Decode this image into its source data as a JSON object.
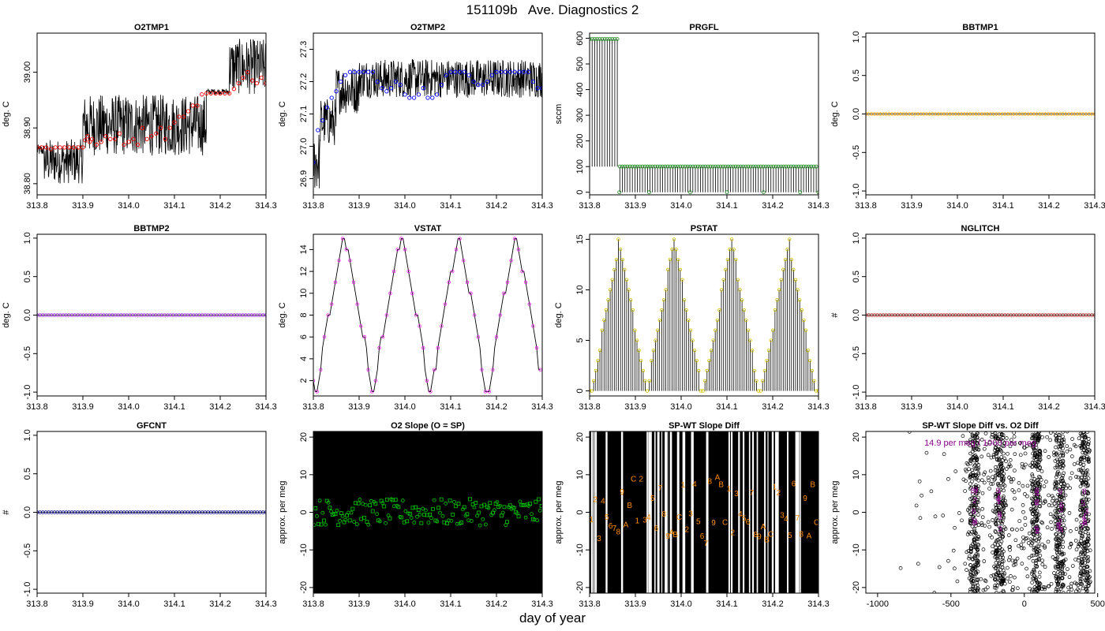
{
  "page": {
    "title": "151109b   Ave. Diagnostics 2",
    "xlabel": "day of year"
  },
  "colors": {
    "black": "#000000",
    "red": "#ff0000",
    "blue": "#0000ff",
    "green": "#00cc00",
    "darkgreen": "#1a8a1a",
    "orange": "#ffa500",
    "purple": "#a020f0",
    "magenta": "#ff00ff",
    "yellow": "#ffff00",
    "darkred": "#b22222",
    "navy": "#00008b",
    "darkorange": "#ff8c00",
    "darkmagenta": "#8b008b"
  },
  "chart_data": [
    {
      "id": "o2tmp1",
      "type": "scatter",
      "title": "O2TMP1",
      "xlabel": "",
      "ylabel": "deg. C",
      "xlim": [
        313.8,
        314.3
      ],
      "ylim": [
        38.78,
        39.07
      ],
      "xticks": [
        "313.8",
        "313.9",
        "314.0",
        "314.1",
        "314.2",
        "314.3"
      ],
      "yticks": [
        "38.80",
        "38.90",
        "39.00"
      ],
      "raw_line": {
        "segments": [
          [
            313.8,
            313.815,
            38.85,
            38.87
          ],
          [
            313.815,
            313.9,
            38.8,
            38.88
          ],
          [
            313.9,
            314.17,
            38.85,
            38.96
          ],
          [
            314.17,
            314.22,
            38.96,
            38.97
          ],
          [
            314.22,
            314.3,
            38.96,
            39.06
          ]
        ],
        "color": "black"
      },
      "series": [
        {
          "marker": "circle",
          "color": "red",
          "x": [
            313.8,
            313.81,
            313.82,
            313.83,
            313.84,
            313.85,
            313.86,
            313.87,
            313.88,
            313.89,
            313.9,
            313.905,
            313.91,
            313.915,
            313.92,
            313.93,
            313.94,
            313.95,
            313.96,
            313.97,
            313.98,
            313.99,
            314.0,
            314.01,
            314.02,
            314.03,
            314.04,
            314.05,
            314.06,
            314.07,
            314.08,
            314.09,
            314.1,
            314.11,
            314.12,
            314.13,
            314.14,
            314.15,
            314.16,
            314.17,
            314.18,
            314.19,
            314.2,
            314.21,
            314.22,
            314.23,
            314.24,
            314.25,
            314.26,
            314.27,
            314.28,
            314.29,
            314.3
          ],
          "y": [
            38.865,
            38.865,
            38.865,
            38.862,
            38.865,
            38.865,
            38.865,
            38.865,
            38.865,
            38.865,
            38.865,
            38.878,
            38.885,
            38.875,
            38.88,
            38.87,
            38.875,
            38.885,
            38.88,
            38.88,
            38.89,
            38.87,
            38.875,
            38.88,
            38.87,
            38.9,
            38.88,
            38.885,
            38.89,
            38.9,
            38.88,
            38.9,
            38.91,
            38.92,
            38.92,
            38.93,
            38.94,
            38.94,
            38.96,
            38.962,
            38.962,
            38.962,
            38.962,
            38.962,
            38.962,
            38.97,
            38.98,
            38.99,
            39.0,
            38.985,
            38.98,
            38.99,
            38.98
          ]
        }
      ]
    },
    {
      "id": "o2tmp2",
      "type": "scatter",
      "title": "O2TMP2",
      "xlabel": "",
      "ylabel": "deg. C",
      "xlim": [
        313.8,
        314.3
      ],
      "ylim": [
        26.85,
        27.35
      ],
      "xticks": [
        "313.8",
        "313.9",
        "314.0",
        "314.1",
        "314.2",
        "314.3"
      ],
      "yticks": [
        "26.9",
        "27.0",
        "27.1",
        "27.2",
        "27.3"
      ],
      "raw_line": {
        "segments": [
          [
            313.8,
            313.815,
            26.86,
            27.05
          ],
          [
            313.815,
            313.85,
            27.0,
            27.15
          ],
          [
            313.85,
            313.9,
            27.1,
            27.25
          ],
          [
            313.9,
            314.3,
            27.15,
            27.27
          ]
        ],
        "color": "black"
      },
      "series": [
        {
          "marker": "circle",
          "color": "blue",
          "x": [
            313.8,
            313.81,
            313.82,
            313.83,
            313.84,
            313.85,
            313.86,
            313.87,
            313.88,
            313.89,
            313.9,
            313.91,
            313.92,
            313.93,
            313.94,
            313.95,
            313.96,
            313.97,
            313.98,
            313.99,
            314.0,
            314.01,
            314.02,
            314.03,
            314.04,
            314.05,
            314.06,
            314.07,
            314.08,
            314.09,
            314.1,
            314.11,
            314.12,
            314.13,
            314.14,
            314.15,
            314.16,
            314.17,
            314.18,
            314.19,
            314.2,
            314.21,
            314.22,
            314.23,
            314.24,
            314.25,
            314.26,
            314.27,
            314.28,
            314.29,
            314.3
          ],
          "y": [
            26.95,
            27.05,
            27.08,
            27.12,
            27.15,
            27.17,
            27.2,
            27.22,
            27.23,
            27.23,
            27.23,
            27.23,
            27.23,
            27.23,
            27.2,
            27.18,
            27.17,
            27.18,
            27.2,
            27.19,
            27.16,
            27.15,
            27.15,
            27.16,
            27.18,
            27.15,
            27.15,
            27.16,
            27.19,
            27.22,
            27.23,
            27.23,
            27.23,
            27.23,
            27.22,
            27.2,
            27.19,
            27.19,
            27.2,
            27.22,
            27.23,
            27.23,
            27.23,
            27.23,
            27.23,
            27.23,
            27.23,
            27.23,
            27.2,
            27.18,
            27.18
          ]
        }
      ]
    },
    {
      "id": "prgfl",
      "type": "line",
      "title": "PRGFL",
      "xlabel": "",
      "ylabel": "sccm",
      "xlim": [
        313.8,
        314.3
      ],
      "ylim": [
        -10,
        620
      ],
      "xticks": [
        "313.8",
        "313.9",
        "314.0",
        "314.1",
        "314.2",
        "314.3"
      ],
      "yticks": [
        "0",
        "100",
        "200",
        "300",
        "400",
        "500",
        "600"
      ],
      "spikes": {
        "x_start": 313.8,
        "x_split": 313.865,
        "x_end": 314.3,
        "step": 0.0055,
        "high1": 597,
        "low1": 100,
        "high2": 100,
        "low2": 0,
        "color": "black"
      },
      "series": [
        {
          "marker": "circle",
          "color": "darkgreen",
          "levels": [
            597,
            100,
            0
          ]
        }
      ]
    },
    {
      "id": "bbtmp1",
      "type": "scatter",
      "title": "BBTMP1",
      "xlabel": "",
      "ylabel": "deg. C",
      "xlim": [
        313.8,
        314.3
      ],
      "ylim": [
        -1.05,
        1.05
      ],
      "xticks": [
        "313.8",
        "313.9",
        "314.0",
        "314.1",
        "314.2",
        "314.3"
      ],
      "yticks": [
        "-1.0",
        "-0.5",
        "0.0",
        "0.5",
        "1.0"
      ],
      "series": [
        {
          "marker": "circle",
          "color": "orange",
          "constant": 0.0,
          "count": 80
        }
      ]
    },
    {
      "id": "bbtmp2",
      "type": "scatter",
      "title": "BBTMP2",
      "xlabel": "",
      "ylabel": "deg. C",
      "xlim": [
        313.8,
        314.3
      ],
      "ylim": [
        -1.05,
        1.05
      ],
      "xticks": [
        "313.8",
        "313.9",
        "314.0",
        "314.1",
        "314.2",
        "314.3"
      ],
      "yticks": [
        "-1.0",
        "-0.5",
        "0.0",
        "0.5",
        "1.0"
      ],
      "series": [
        {
          "marker": "circle",
          "color": "purple",
          "constant": 0.0,
          "count": 80
        }
      ]
    },
    {
      "id": "vstat",
      "type": "line",
      "title": "VSTAT",
      "xlabel": "",
      "ylabel": "deg. C",
      "xlim": [
        313.8,
        314.3
      ],
      "ylim": [
        0.6,
        15.4
      ],
      "xticks": [
        "313.8",
        "313.9",
        "314.0",
        "314.1",
        "314.2",
        "314.3"
      ],
      "yticks": [
        "2",
        "4",
        "6",
        "8",
        "10",
        "12",
        "14"
      ],
      "steps": {
        "x_start": 313.8,
        "x_end": 314.3,
        "levels": [
          1,
          2,
          3,
          5,
          6,
          7,
          8,
          9,
          10,
          11,
          12,
          13,
          14,
          15
        ],
        "color": "black"
      },
      "series": [
        {
          "marker": "circle",
          "color": "magenta"
        }
      ]
    },
    {
      "id": "pstat",
      "type": "line",
      "title": "PSTAT",
      "xlabel": "",
      "ylabel": "deg. C",
      "xlim": [
        313.8,
        314.3
      ],
      "ylim": [
        -0.5,
        15.5
      ],
      "xticks": [
        "313.8",
        "313.9",
        "314.0",
        "314.1",
        "314.2",
        "314.3"
      ],
      "yticks": [
        "0",
        "5",
        "10",
        "15"
      ],
      "series": [
        {
          "marker": "circle",
          "color": "yellow",
          "peaks": [
            313.865,
            313.985,
            314.11,
            314.235
          ],
          "max": 15
        }
      ]
    },
    {
      "id": "nglitch",
      "type": "scatter",
      "title": "NGLITCH",
      "xlabel": "",
      "ylabel": "#",
      "xlim": [
        313.8,
        314.3
      ],
      "ylim": [
        -1.05,
        1.05
      ],
      "xticks": [
        "313.8",
        "313.9",
        "314.0",
        "314.1",
        "314.2",
        "314.3"
      ],
      "yticks": [
        "-1.0",
        "-0.5",
        "0.0",
        "0.5",
        "1.0"
      ],
      "series": [
        {
          "marker": "circle",
          "color": "darkred",
          "constant": 0.0,
          "count": 80
        }
      ]
    },
    {
      "id": "gfcnt",
      "type": "scatter",
      "title": "GFCNT",
      "xlabel": "",
      "ylabel": "#",
      "xlim": [
        313.8,
        314.3
      ],
      "ylim": [
        -1.05,
        1.05
      ],
      "xticks": [
        "313.8",
        "313.9",
        "314.0",
        "314.1",
        "314.2",
        "314.3"
      ],
      "yticks": [
        "-1.0",
        "-0.5",
        "0.0",
        "0.5",
        "1.0"
      ],
      "series": [
        {
          "marker": "circle",
          "color": "navy",
          "constant": 0.0,
          "count": 80
        }
      ]
    },
    {
      "id": "o2slope",
      "type": "scatter",
      "title": "O2 Slope (O = SP)",
      "xlabel": "",
      "ylabel": "approx. per meg",
      "xlim": [
        313.8,
        314.3
      ],
      "ylim": [
        -21.5,
        21.5
      ],
      "xticks": [
        "313.8",
        "313.9",
        "314.0",
        "314.1",
        "314.2",
        "314.3"
      ],
      "yticks": [
        "-20",
        "-10",
        "0",
        "10",
        "20"
      ],
      "noise_band": {
        "low": -21.5,
        "high": 21.5,
        "color": "black"
      },
      "series": [
        {
          "marker": "mixed-circle-square",
          "color": "green",
          "count": 160,
          "spread": 3.5
        }
      ]
    },
    {
      "id": "spwtdiff",
      "type": "scatter",
      "title": "SP-WT Slope Diff",
      "xlabel": "",
      "ylabel": "approx. per meg",
      "xlim": [
        313.8,
        314.3
      ],
      "ylim": [
        -21.5,
        21.5
      ],
      "xticks": [
        "313.8",
        "313.9",
        "314.0",
        "314.1",
        "314.2",
        "314.3"
      ],
      "yticks": [
        "-20",
        "-10",
        "0",
        "10",
        "20"
      ],
      "noise_band": {
        "low": -21.5,
        "high": 21.5,
        "color": "black",
        "gaps": 40
      },
      "series": [
        {
          "marker": "text",
          "color": "darkorange",
          "glyphs": [
            "1",
            "2",
            "3",
            "4",
            "5",
            "6",
            "7",
            "8",
            "9",
            "A",
            "B",
            "C"
          ],
          "count": 60
        }
      ]
    },
    {
      "id": "spwt_vs_o2",
      "type": "scatter",
      "title": "SP-WT Slope Diff vs. O2 Diff",
      "xlabel": "",
      "ylabel": "approx. per meg",
      "xlim": [
        -1080,
        480
      ],
      "ylim": [
        -21.5,
        21.5
      ],
      "xticks": [
        "-1000",
        "-500",
        "0",
        "500"
      ],
      "yticks": [
        "-20",
        "-10",
        "0",
        "10",
        "20"
      ],
      "annotation": {
        "text": "14.9 per meg / 1000 per meg",
        "color": "darkmagenta"
      },
      "series": [
        {
          "marker": "circle",
          "color": "black",
          "clusters": [
            -340,
            -170,
            80,
            240,
            410
          ],
          "scatter_count": 700
        },
        {
          "marker": "text",
          "color": "darkmagenta",
          "glyphs": [
            "1",
            "2",
            "3",
            "4",
            "5",
            "6",
            "7",
            "8",
            "9"
          ],
          "count": 40
        }
      ]
    }
  ]
}
